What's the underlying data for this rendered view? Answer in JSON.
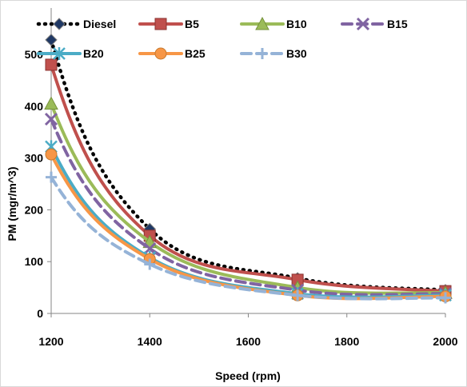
{
  "chart_data": {
    "type": "line",
    "xlabel": "Speed (rpm)",
    "ylabel": "PM (mgr/m^3)",
    "xlim": [
      1200,
      2000
    ],
    "ylim": [
      0,
      500
    ],
    "x_ticks": [
      1200,
      1400,
      1600,
      1800,
      2000
    ],
    "y_ticks": [
      0,
      100,
      200,
      300,
      400,
      500
    ],
    "x": [
      1200,
      1400,
      1700,
      2000
    ],
    "legend_position": "top",
    "grid": false,
    "series": [
      {
        "name": "Diesel",
        "values": [
          528,
          163,
          68,
          45
        ],
        "color": "#000000",
        "dash": "dot",
        "marker": "diamond"
      },
      {
        "name": "B5",
        "values": [
          480,
          150,
          65,
          43
        ],
        "color": "#c0504d",
        "dash": "solid",
        "marker": "square"
      },
      {
        "name": "B10",
        "values": [
          405,
          138,
          50,
          40
        ],
        "color": "#9bbb59",
        "dash": "solid",
        "marker": "triangle"
      },
      {
        "name": "B15",
        "values": [
          375,
          125,
          45,
          38
        ],
        "color": "#8064a2",
        "dash": "dash",
        "marker": "x"
      },
      {
        "name": "B20",
        "values": [
          322,
          108,
          38,
          35
        ],
        "color": "#4bacc6",
        "dash": "solid",
        "marker": "asterisk"
      },
      {
        "name": "B25",
        "values": [
          307,
          105,
          35,
          33
        ],
        "color": "#f79646",
        "dash": "solid",
        "marker": "circle"
      },
      {
        "name": "B30",
        "values": [
          263,
          95,
          35,
          30
        ],
        "color": "#95b3d7",
        "dash": "dash",
        "marker": "plus"
      }
    ]
  }
}
